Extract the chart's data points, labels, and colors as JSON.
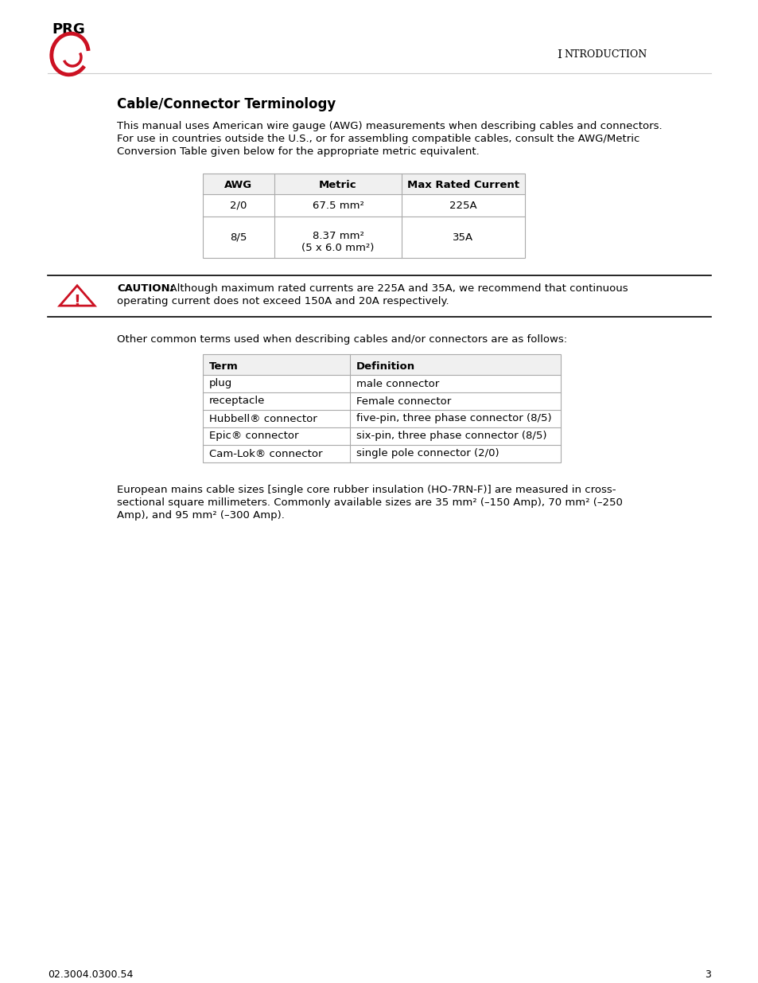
{
  "title": "Cable/Connector Terminology",
  "header_intro": "Introduction",
  "intro_text_lines": [
    "This manual uses American wire gauge (AWG) measurements when describing cables and connectors.",
    "For use in countries outside the U.S., or for assembling compatible cables, consult the AWG/Metric",
    "Conversion Table given below for the appropriate metric equivalent."
  ],
  "awg_headers": [
    "AWG",
    "Metric",
    "Max Rated Current"
  ],
  "awg_rows": [
    [
      "2/0",
      "67.5 mm²",
      "225A"
    ],
    [
      "8/5",
      "8.37 mm²\n(5 x 6.0 mm²)",
      "35A"
    ]
  ],
  "caution_label": "CAUTION:",
  "caution_body": "  Although maximum rated currents are 225A and 35A, we recommend that continuous\noperating current does not exceed 150A and 20A respectively.",
  "other_terms_intro": "Other common terms used when describing cables and/or connectors are as follows:",
  "terms_headers": [
    "Term",
    "Definition"
  ],
  "terms_rows": [
    [
      "plug",
      "male connector"
    ],
    [
      "receptacle",
      "Female connector"
    ],
    [
      "Hubbell® connector",
      "five-pin, three phase connector (8/5)"
    ],
    [
      "Epic® connector",
      "six-pin, three phase connector (8/5)"
    ],
    [
      "Cam-Lok® connector",
      "single pole connector (2/0)"
    ]
  ],
  "footer_lines": [
    "European mains cable sizes [single core rubber insulation (HO-7RN-F)] are measured in cross-",
    "sectional square millimeters. Commonly available sizes are 35 mm² (–150 Amp), 70 mm² (–250",
    "Amp), and 95 mm² (–300 Amp)."
  ],
  "page_num": "3",
  "doc_num": "02.3004.0300.54",
  "bg_color": "#ffffff",
  "text_color": "#000000",
  "border_color": "#aaaaaa",
  "caution_line_color": "#000000",
  "triangle_color": "#cc1122"
}
